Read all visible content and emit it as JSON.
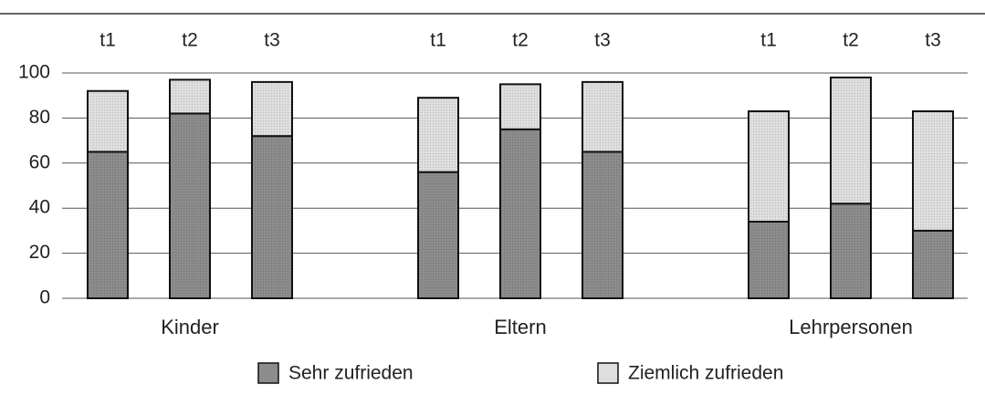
{
  "chart_data": {
    "type": "bar",
    "stacked": true,
    "categories": [
      "t1",
      "t2",
      "t3",
      "t1",
      "t2",
      "t3",
      "t1",
      "t2",
      "t3"
    ],
    "groups": [
      "Kinder",
      "Eltern",
      "Lehrpersonen"
    ],
    "series": [
      {
        "name": "Sehr zufrieden",
        "color": "#8c8c8c",
        "values": [
          65,
          82,
          72,
          56,
          75,
          65,
          34,
          42,
          30
        ]
      },
      {
        "name": "Ziemlich zufrieden",
        "color": "#dedede",
        "values": [
          27,
          15,
          24,
          33,
          20,
          31,
          49,
          56,
          53
        ]
      }
    ],
    "ylim": [
      0,
      100
    ],
    "yticks": [
      0,
      20,
      40,
      60,
      80,
      100
    ],
    "grid": true
  }
}
